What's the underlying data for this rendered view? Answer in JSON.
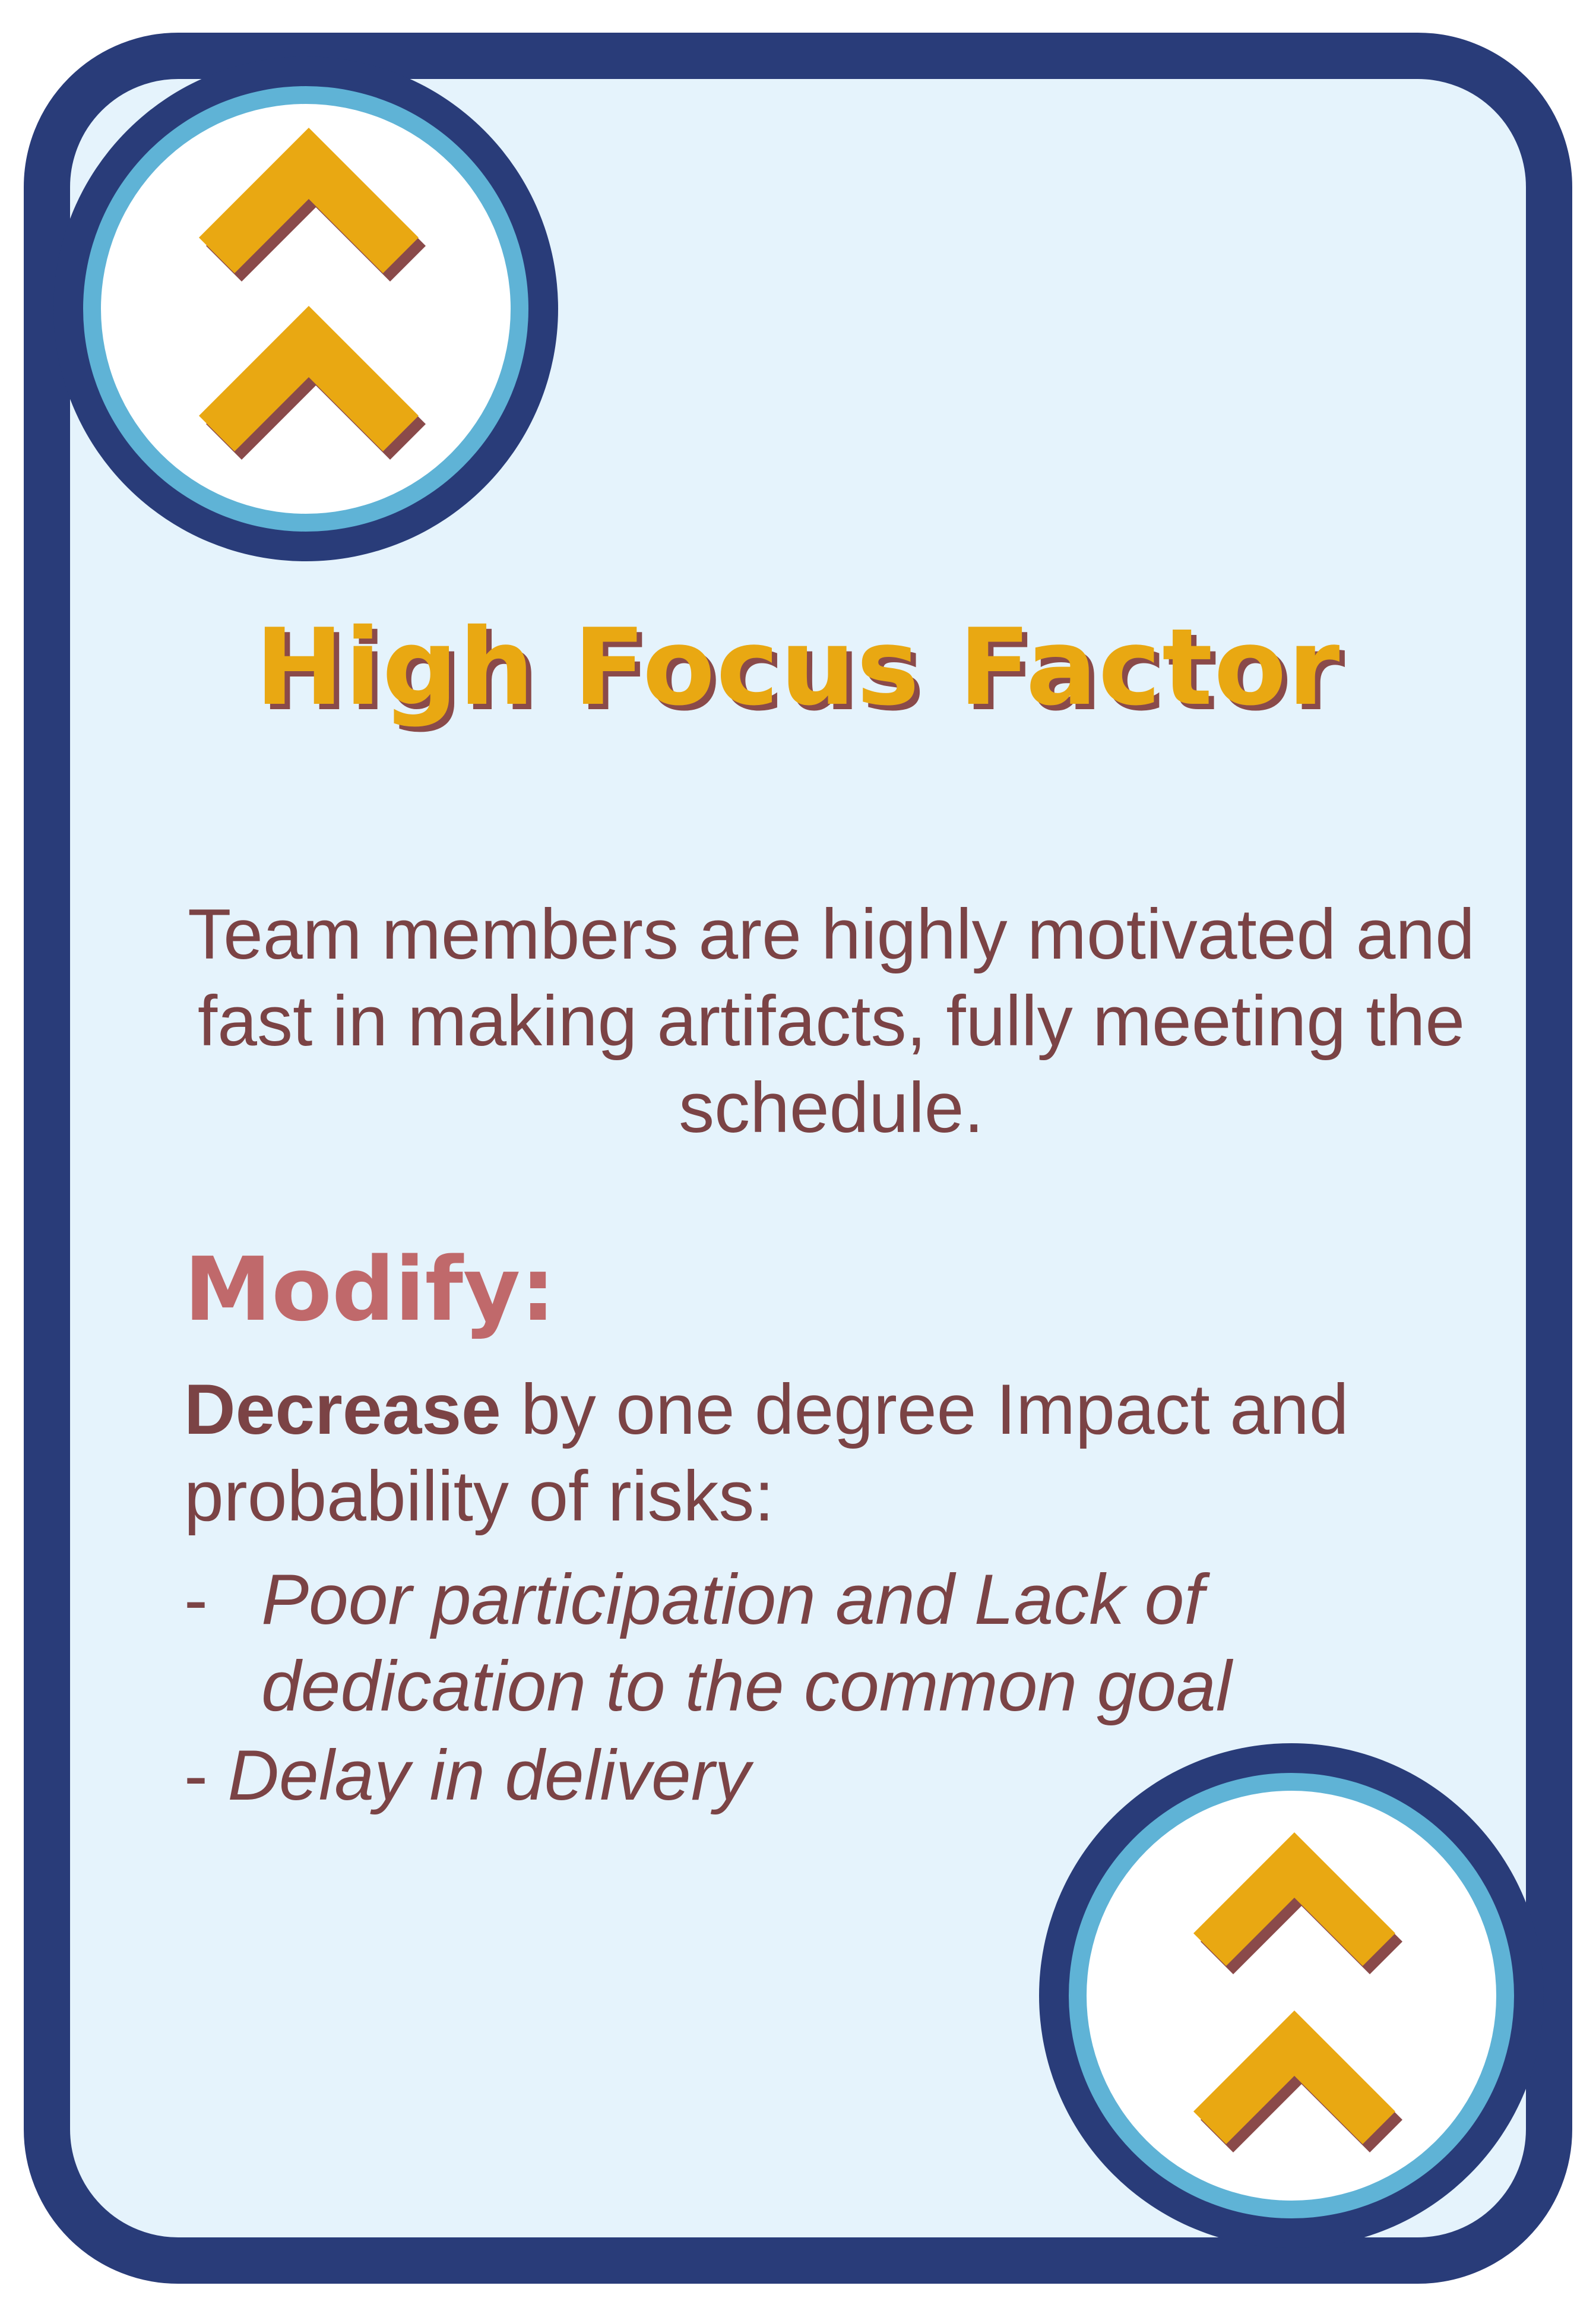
{
  "card": {
    "title": "High Focus Factor",
    "description": "Team members are highly motivated and fast in making artifacts, fully meeting the schedule.",
    "modify": {
      "heading": "Modify:",
      "action_bold": "Decrease",
      "action_rest": " by one degree Impact and probability of risks:",
      "risks": [
        {
          "dash": "-",
          "text": "Poor participation and Lack of dedication to the common goal"
        },
        {
          "dash": "- ",
          "text": "Delay in delivery"
        }
      ]
    },
    "badge_icon": "double-chevron-up-icon"
  },
  "colors": {
    "border": "#293c79",
    "background": "#e5f3fc",
    "ring": "#5fb3d6",
    "chevron": "#e9a812",
    "chevron_shadow": "#8a4a4a",
    "text": "#7b4345",
    "modify_heading": "#c0696b"
  }
}
